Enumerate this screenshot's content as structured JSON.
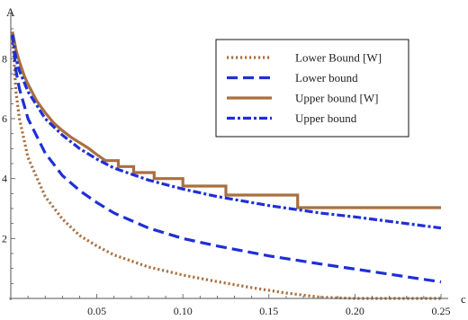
{
  "chart_data": {
    "type": "line",
    "title": "",
    "xlabel": "c",
    "ylabel": "A",
    "xlim": [
      0,
      0.25
    ],
    "ylim": [
      0,
      9
    ],
    "x_ticks": [
      0.05,
      0.1,
      0.15,
      0.2,
      0.25
    ],
    "x_tick_labels": [
      "0.05",
      "0.10",
      "0.15",
      "0.20",
      "0.25"
    ],
    "y_ticks": [
      2,
      4,
      6,
      8
    ],
    "y_tick_labels": [
      "2",
      "4",
      "6",
      "8"
    ],
    "grid": false,
    "legend_position": "top-right",
    "series": [
      {
        "name": "Lower Bound [W]",
        "color": "#a8703f",
        "dash": "dotted",
        "x": [
          0.001,
          0.003,
          0.005,
          0.01,
          0.02,
          0.03,
          0.04,
          0.05,
          0.06,
          0.08,
          0.1,
          0.12,
          0.14,
          0.16,
          0.18,
          0.2,
          0.22,
          0.25
        ],
        "y": [
          8.7,
          6.9,
          6.0,
          4.7,
          3.4,
          2.65,
          2.1,
          1.75,
          1.45,
          1.05,
          0.78,
          0.56,
          0.36,
          0.18,
          0.04,
          0.0,
          0.0,
          0.0
        ]
      },
      {
        "name": "Lower bound",
        "color": "#1f2fd6",
        "dash": "dashed",
        "x": [
          0.001,
          0.003,
          0.005,
          0.01,
          0.02,
          0.03,
          0.04,
          0.05,
          0.06,
          0.08,
          0.1,
          0.12,
          0.15,
          0.18,
          0.2,
          0.25
        ],
        "y": [
          8.8,
          7.6,
          7.0,
          6.0,
          4.85,
          4.1,
          3.6,
          3.2,
          2.85,
          2.35,
          2.0,
          1.75,
          1.42,
          1.15,
          0.98,
          0.55
        ]
      },
      {
        "name": "Upper bound [W]",
        "color": "#a8703f",
        "dash": "solid",
        "x": [
          0.001,
          0.003,
          0.005,
          0.008,
          0.01,
          0.015,
          0.02,
          0.025,
          0.03,
          0.035,
          0.04,
          0.045,
          0.05,
          0.055,
          0.0625,
          0.0625,
          0.0714,
          0.0714,
          0.0833,
          0.0833,
          0.1,
          0.1,
          0.125,
          0.125,
          0.1667,
          0.1667,
          0.25
        ],
        "y": [
          8.9,
          8.3,
          7.9,
          7.4,
          7.15,
          6.6,
          6.2,
          5.85,
          5.6,
          5.38,
          5.2,
          5.02,
          4.8,
          4.6,
          4.6,
          4.4,
          4.4,
          4.2,
          4.2,
          4.0,
          4.0,
          3.75,
          3.75,
          3.45,
          3.45,
          3.03,
          3.03
        ]
      },
      {
        "name": "Upper bound",
        "color": "#1f2fd6",
        "dash": "dot-dash",
        "x": [
          0.001,
          0.003,
          0.005,
          0.01,
          0.02,
          0.03,
          0.04,
          0.05,
          0.06,
          0.08,
          0.1,
          0.12,
          0.15,
          0.18,
          0.2,
          0.25
        ],
        "y": [
          8.8,
          8.0,
          7.6,
          6.9,
          6.0,
          5.45,
          5.0,
          4.65,
          4.35,
          3.95,
          3.65,
          3.4,
          3.1,
          2.85,
          2.72,
          2.35
        ]
      }
    ]
  }
}
